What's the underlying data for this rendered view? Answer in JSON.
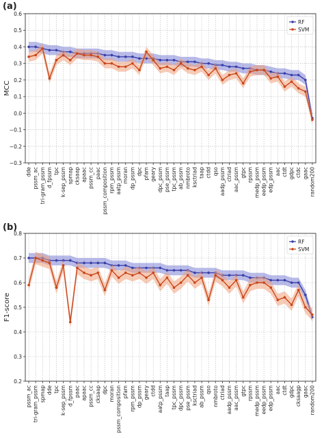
{
  "colors": {
    "rf": "#3a3fa8",
    "svm": "#c8461a",
    "rf_band": "#7d83d6",
    "svm_band": "#f0a07a",
    "grid": "#b9b9b9"
  },
  "chart_data": [
    {
      "panel_label": "(a)",
      "type": "line",
      "ylabel": "MCC",
      "xlabel": "",
      "ylim": [
        -0.3,
        0.6
      ],
      "yticks": [
        "−0.3",
        "−0.2",
        "−0.1",
        "0.0",
        "0.1",
        "0.2",
        "0.3",
        "0.4",
        "0.5",
        "0.6"
      ],
      "grid": true,
      "legend": "top-right",
      "categories": [
        "dde",
        "pssm_ac",
        "tri-gram_pssm",
        "d_fpssm",
        "tpc",
        "k-sep_pssm",
        "spmap",
        "cksaap",
        "apaac",
        "pssm_cc",
        "paac",
        "pssm_composition",
        "rpm_pssm",
        "aatp_pssm",
        "moran",
        "dp_pssm",
        "dpc",
        "pfam",
        "geary",
        "dpc_pssm",
        "pse_pssm",
        "tpc_pssm",
        "ab_pssm",
        "nmbroto",
        "ksctriad",
        "taap",
        "ctdd",
        "qso",
        "aadp_pssm",
        "ctriad",
        "aac_pssm",
        "gtpc",
        "rpssm",
        "medp_pssm",
        "eedp_pssm",
        "edp_pssm",
        "aac",
        "ctdt",
        "gdpc",
        "ctdc",
        "gaac",
        "random200"
      ],
      "series": [
        {
          "name": "RF",
          "values": [
            0.4,
            0.4,
            0.39,
            0.38,
            0.38,
            0.37,
            0.37,
            0.36,
            0.36,
            0.36,
            0.36,
            0.35,
            0.35,
            0.34,
            0.34,
            0.34,
            0.33,
            0.33,
            0.33,
            0.32,
            0.32,
            0.32,
            0.31,
            0.31,
            0.31,
            0.3,
            0.3,
            0.29,
            0.29,
            0.28,
            0.28,
            0.27,
            0.27,
            0.26,
            0.26,
            0.25,
            0.24,
            0.24,
            0.23,
            0.23,
            0.2,
            -0.03
          ],
          "band": 0.03
        },
        {
          "name": "SVM",
          "values": [
            0.34,
            0.35,
            0.39,
            0.21,
            0.32,
            0.35,
            0.32,
            0.36,
            0.35,
            0.35,
            0.34,
            0.3,
            0.3,
            0.28,
            0.28,
            0.3,
            0.26,
            0.37,
            0.32,
            0.27,
            0.28,
            0.26,
            0.3,
            0.27,
            0.26,
            0.28,
            0.23,
            0.27,
            0.2,
            0.23,
            0.24,
            0.18,
            0.25,
            0.26,
            0.26,
            0.21,
            0.22,
            0.16,
            0.19,
            0.15,
            0.13,
            -0.04
          ],
          "band": 0.03
        }
      ]
    },
    {
      "panel_label": "(b)",
      "type": "line",
      "ylabel": "F1-score",
      "xlabel": "",
      "ylim": [
        0.2,
        0.8
      ],
      "yticks": [
        "0.2",
        "0.3",
        "0.4",
        "0.5",
        "0.6",
        "0.7",
        "0.8"
      ],
      "grid": true,
      "legend": "top-right",
      "categories": [
        "pssm_ac",
        "tri-gram_pssm",
        "spmap",
        "dde",
        "tpc",
        "k-sep_pssm",
        "d_fpssm",
        "paac",
        "apaac",
        "pssm_cc",
        "cksaap",
        "dpc",
        "moran",
        "pssm_composition",
        "pfam",
        "rpm_pssm",
        "dp_pssm",
        "geary",
        "ctdd",
        "aatp_pssm",
        "taap",
        "tpc_pssm",
        "dpc_pssm",
        "pse_pssm",
        "ksctriad",
        "ab_pssm",
        "qso",
        "nmbroto",
        "ctriad",
        "aadp_pssm",
        "aac_pssm",
        "gtpc",
        "rpssm",
        "medp_pssm",
        "eedp_pssm",
        "edp_pssm",
        "aac",
        "ctdt",
        "gdpc",
        "cksaagp",
        "gaac",
        "random200"
      ],
      "series": [
        {
          "name": "RF",
          "values": [
            0.7,
            0.7,
            0.7,
            0.69,
            0.69,
            0.69,
            0.69,
            0.68,
            0.68,
            0.68,
            0.68,
            0.68,
            0.67,
            0.67,
            0.67,
            0.66,
            0.66,
            0.66,
            0.66,
            0.66,
            0.65,
            0.65,
            0.65,
            0.65,
            0.64,
            0.64,
            0.64,
            0.64,
            0.63,
            0.63,
            0.63,
            0.63,
            0.62,
            0.62,
            0.62,
            0.61,
            0.61,
            0.61,
            0.6,
            0.6,
            0.55,
            0.46
          ],
          "band": 0.02
        },
        {
          "name": "SVM",
          "values": [
            0.59,
            0.7,
            0.69,
            0.68,
            0.58,
            0.67,
            0.44,
            0.66,
            0.64,
            0.63,
            0.64,
            0.57,
            0.65,
            0.62,
            0.64,
            0.63,
            0.64,
            0.62,
            0.64,
            0.59,
            0.62,
            0.58,
            0.6,
            0.63,
            0.6,
            0.62,
            0.53,
            0.63,
            0.61,
            0.58,
            0.61,
            0.54,
            0.59,
            0.6,
            0.6,
            0.58,
            0.53,
            0.54,
            0.51,
            0.57,
            0.5,
            0.47
          ],
          "band": 0.025
        }
      ]
    }
  ]
}
